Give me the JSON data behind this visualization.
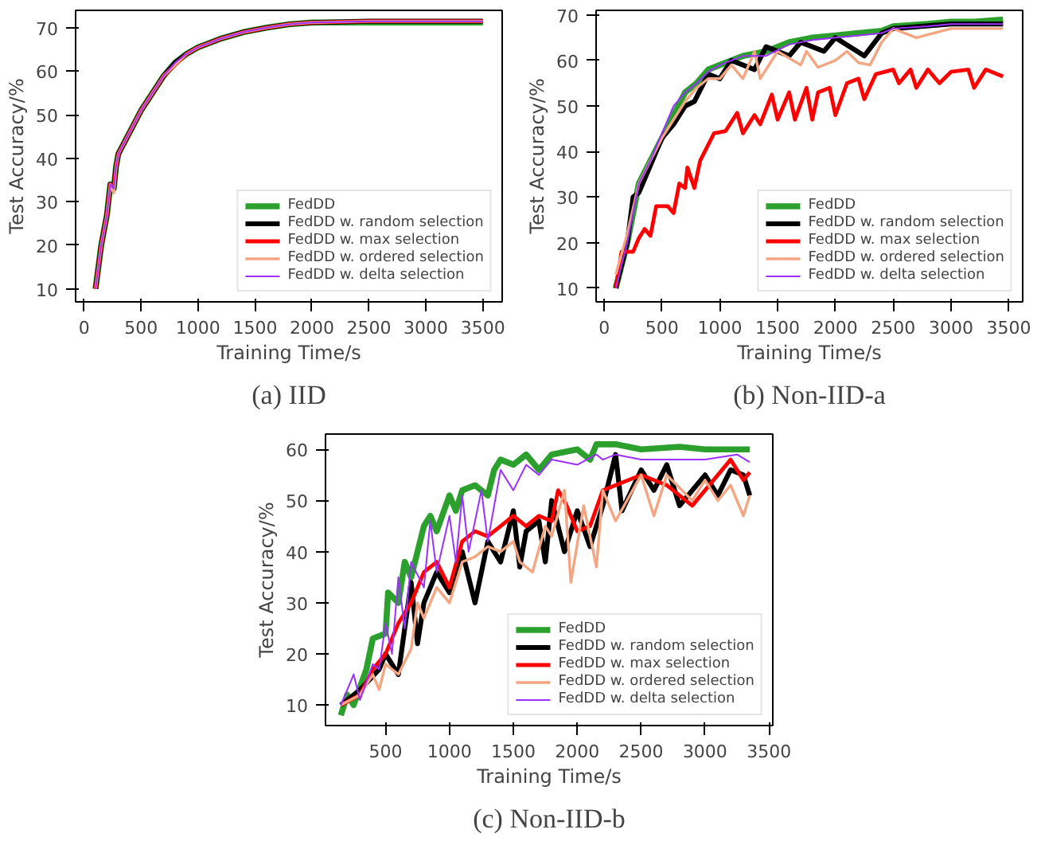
{
  "chart_data": [
    {
      "type": "line",
      "title": "(a) IID",
      "xlabel": "Training Time/s",
      "ylabel": "Test Accuracy/%",
      "xlim": [
        -75,
        3670
      ],
      "ylim": [
        7,
        74
      ],
      "xticks": [
        0,
        500,
        1000,
        1500,
        2000,
        2500,
        3000,
        3500
      ],
      "yticks": [
        10,
        20,
        30,
        40,
        50,
        60,
        70
      ],
      "legend": "bottom right",
      "series": [
        {
          "name": "FedDD",
          "color": "#2ca02c",
          "x": [
            100,
            150,
            200,
            230,
            260,
            280,
            300,
            400,
            500,
            600,
            700,
            800,
            900,
            1000,
            1200,
            1400,
            1600,
            1800,
            2000,
            2500,
            3000,
            3500
          ],
          "values": [
            10,
            20,
            27,
            34,
            33,
            38,
            41,
            46,
            51,
            55,
            59,
            62,
            64,
            65.5,
            67.5,
            69,
            70,
            70.8,
            71.2,
            71.2,
            71.2,
            71.2
          ]
        },
        {
          "name": "FedDD w. random selection",
          "color": "#000000",
          "x": [
            100,
            150,
            200,
            230,
            260,
            280,
            300,
            400,
            500,
            600,
            700,
            800,
            900,
            1000,
            1200,
            1400,
            1600,
            1800,
            2000,
            2500,
            3000,
            3500
          ],
          "values": [
            10,
            20,
            27,
            34,
            33,
            38,
            41,
            46,
            51,
            55,
            59,
            62,
            64,
            65.5,
            67.5,
            69,
            70,
            70.8,
            71.2,
            71.5,
            71.5,
            71.5
          ]
        },
        {
          "name": "FedDD w. max selection",
          "color": "#ff0000",
          "x": [
            100,
            150,
            200,
            230,
            260,
            280,
            300,
            400,
            500,
            600,
            700,
            800,
            900,
            1000,
            1200,
            1400,
            1600,
            1800,
            2000,
            2500,
            3000,
            3500
          ],
          "values": [
            10,
            20,
            27,
            34,
            33,
            38,
            41,
            46,
            51,
            55,
            59,
            61.5,
            64,
            65.5,
            67.5,
            69,
            70,
            70.8,
            71.2,
            71.5,
            71.5,
            71.5
          ]
        },
        {
          "name": "FedDD w. ordered selection",
          "color": "#f4a582",
          "x": [
            100,
            150,
            200,
            230,
            260,
            280,
            300,
            400,
            500,
            600,
            700,
            800,
            900,
            1000,
            1200,
            1400,
            1600,
            1800,
            2000,
            2500,
            3000,
            3500
          ],
          "values": [
            10,
            20,
            27,
            34,
            32,
            38,
            41,
            46,
            51,
            55,
            59,
            61.5,
            64,
            65.5,
            67.5,
            69,
            70,
            70.8,
            71.2,
            71.5,
            71.5,
            71.5
          ]
        },
        {
          "name": "FedDD w. delta selection",
          "color": "#9b30ff",
          "x": [
            100,
            150,
            200,
            230,
            260,
            280,
            300,
            400,
            500,
            600,
            700,
            800,
            900,
            1000,
            1200,
            1400,
            1600,
            1800,
            2000,
            2500,
            3000,
            3500
          ],
          "values": [
            10,
            20,
            27,
            34,
            33,
            38,
            41,
            46,
            51,
            55,
            59,
            62,
            64,
            65.5,
            67.5,
            69,
            70,
            70.8,
            71.2,
            71.5,
            71.5,
            71.5
          ]
        }
      ]
    },
    {
      "type": "line",
      "title": "(b) Non-IID-a",
      "xlabel": "Training Time/s",
      "ylabel": "Test Accuracy/%",
      "xlim": [
        -70,
        3620
      ],
      "ylim": [
        7,
        71
      ],
      "xticks": [
        0,
        500,
        1000,
        1500,
        2000,
        2500,
        3000,
        3500
      ],
      "yticks": [
        10,
        20,
        30,
        40,
        50,
        60,
        70
      ],
      "legend": "bottom right",
      "series": [
        {
          "name": "FedDD",
          "color": "#2ca02c",
          "x": [
            100,
            200,
            300,
            400,
            500,
            600,
            700,
            800,
            900,
            1000,
            1200,
            1400,
            1600,
            1800,
            2000,
            2200,
            2400,
            2500,
            2800,
            3000,
            3200,
            3450
          ],
          "values": [
            10,
            20,
            33,
            38,
            43,
            48,
            53,
            55,
            58,
            59,
            61,
            62,
            64,
            65,
            65.5,
            66,
            66.5,
            67.5,
            68,
            68.5,
            68.5,
            69
          ]
        },
        {
          "name": "FedDD w. random selection",
          "color": "#000000",
          "x": [
            100,
            200,
            250,
            300,
            400,
            500,
            600,
            700,
            780,
            900,
            1000,
            1100,
            1300,
            1400,
            1600,
            1700,
            1900,
            2000,
            2250,
            2400,
            2500,
            3000,
            3450
          ],
          "values": [
            10,
            20,
            30,
            31,
            37,
            43,
            46,
            50,
            51,
            57,
            56,
            60,
            58,
            63,
            61,
            64,
            62,
            65,
            61,
            66,
            67,
            68,
            68
          ]
        },
        {
          "name": "FedDD w. max selection",
          "color": "#ff0000",
          "x": [
            100,
            150,
            250,
            300,
            350,
            400,
            450,
            550,
            600,
            650,
            700,
            720,
            780,
            830,
            950,
            1050,
            1150,
            1200,
            1300,
            1350,
            1450,
            1500,
            1600,
            1650,
            1750,
            1800,
            1850,
            1950,
            2000,
            2100,
            2200,
            2250,
            2350,
            2500,
            2550,
            2650,
            2700,
            2800,
            2900,
            3000,
            3150,
            3200,
            3300,
            3450
          ],
          "values": [
            10,
            18,
            18,
            21,
            23,
            21.5,
            28,
            28,
            26.5,
            33,
            32,
            36.5,
            32,
            38,
            44,
            44.5,
            48.5,
            44,
            48,
            46,
            52.5,
            47,
            53,
            47,
            54,
            47,
            53,
            54,
            48,
            55,
            56,
            51.5,
            57,
            58,
            55,
            58,
            54,
            58,
            55,
            57.5,
            58,
            54,
            58,
            56.5
          ]
        },
        {
          "name": "FedDD w. ordered selection",
          "color": "#f4a582",
          "x": [
            100,
            200,
            300,
            400,
            500,
            600,
            700,
            800,
            900,
            1000,
            1100,
            1200,
            1300,
            1350,
            1500,
            1700,
            1750,
            1850,
            2000,
            2100,
            2200,
            2300,
            2400,
            2500,
            2700,
            3000,
            3450
          ],
          "values": [
            13,
            22,
            33,
            38,
            43,
            47,
            51,
            54,
            56,
            56,
            59,
            56,
            62,
            56,
            62,
            59,
            62,
            58.5,
            60,
            62,
            59.5,
            59,
            64,
            67,
            65,
            67,
            67
          ]
        },
        {
          "name": "FedDD w. delta selection",
          "color": "#9b30ff",
          "x": [
            100,
            200,
            300,
            400,
            500,
            600,
            700,
            800,
            900,
            1000,
            1200,
            1400,
            1600,
            1800,
            2000,
            2200,
            2400,
            2500,
            2800,
            3000,
            3200,
            3450
          ],
          "values": [
            10,
            20,
            33,
            38,
            44,
            50,
            53,
            55,
            57.5,
            59,
            61,
            61,
            63.5,
            64.5,
            65,
            65.5,
            66,
            67,
            67.5,
            68,
            68,
            68
          ]
        }
      ]
    },
    {
      "type": "line",
      "title": "(c) Non-IID-b",
      "xlabel": "Training Time/s",
      "ylabel": "Test Accuracy/%",
      "xlim": [
        30,
        3530
      ],
      "ylim": [
        6,
        63
      ],
      "xticks": [
        500,
        1000,
        1500,
        2000,
        2500,
        3000,
        3500
      ],
      "yticks": [
        10,
        20,
        30,
        40,
        50,
        60
      ],
      "legend": "bottom right",
      "series": [
        {
          "name": "FedDD",
          "color": "#2ca02c",
          "x": [
            150,
            200,
            250,
            350,
            400,
            500,
            520,
            600,
            650,
            700,
            750,
            800,
            850,
            900,
            1000,
            1050,
            1100,
            1200,
            1300,
            1350,
            1400,
            1500,
            1600,
            1700,
            1800,
            2000,
            2100,
            2150,
            2300,
            2500,
            2800,
            3000,
            3200,
            3350
          ],
          "values": [
            8,
            12,
            10,
            17,
            23,
            24,
            32,
            30,
            38,
            35,
            40,
            45,
            47,
            44,
            51,
            48,
            52,
            53,
            51,
            56,
            58,
            57,
            59,
            56,
            59,
            60,
            58,
            61,
            61,
            60,
            60.5,
            60,
            60,
            60
          ]
        },
        {
          "name": "FedDD w. random selection",
          "color": "#000000",
          "x": [
            150,
            300,
            450,
            500,
            600,
            700,
            750,
            800,
            900,
            1000,
            1100,
            1200,
            1300,
            1400,
            1500,
            1550,
            1600,
            1700,
            1750,
            1800,
            1900,
            2000,
            2100,
            2200,
            2300,
            2350,
            2500,
            2600,
            2700,
            2800,
            3000,
            3100,
            3200,
            3300,
            3350
          ],
          "values": [
            10,
            13,
            17,
            20,
            16,
            34,
            22,
            30,
            36,
            32,
            40,
            30,
            42,
            38,
            48,
            37,
            44,
            46,
            38,
            50,
            40,
            48,
            41,
            49,
            59,
            48,
            56,
            52,
            57,
            49,
            55,
            51,
            56,
            55,
            51
          ]
        },
        {
          "name": "FedDD w. max selection",
          "color": "#ff0000",
          "x": [
            150,
            300,
            400,
            500,
            600,
            700,
            800,
            900,
            1000,
            1100,
            1200,
            1300,
            1400,
            1500,
            1600,
            1700,
            1800,
            1850,
            1900,
            2000,
            2100,
            2200,
            2300,
            2500,
            2700,
            2900,
            3000,
            3100,
            3200,
            3300,
            3350
          ],
          "values": [
            10,
            12,
            17,
            20,
            26,
            30,
            36,
            38,
            33,
            42,
            44,
            43,
            45,
            47,
            45,
            47,
            46,
            52,
            50,
            44,
            45,
            52,
            53,
            55,
            53,
            49,
            52,
            55,
            58,
            54,
            55.5
          ]
        },
        {
          "name": "FedDD w. ordered selection",
          "color": "#f4a582",
          "x": [
            150,
            300,
            400,
            450,
            500,
            600,
            700,
            750,
            800,
            900,
            1000,
            1100,
            1200,
            1300,
            1400,
            1500,
            1550,
            1650,
            1750,
            1800,
            1900,
            1950,
            2050,
            2150,
            2200,
            2300,
            2500,
            2600,
            2700,
            2900,
            3000,
            3100,
            3200,
            3300,
            3350
          ],
          "values": [
            10,
            12,
            16,
            13,
            18,
            16,
            21,
            30,
            27,
            33,
            30,
            38,
            39,
            41,
            40,
            42,
            38,
            36,
            45,
            43,
            52,
            34,
            49,
            37,
            52,
            46,
            55,
            47,
            55,
            50,
            54,
            50,
            53,
            47,
            51
          ]
        },
        {
          "name": "FedDD w. delta selection",
          "color": "#9b30ff",
          "x": [
            150,
            250,
            300,
            400,
            450,
            500,
            550,
            600,
            650,
            700,
            800,
            850,
            900,
            1000,
            1050,
            1100,
            1150,
            1250,
            1300,
            1400,
            1500,
            1600,
            1700,
            1800,
            2000,
            2150,
            2200,
            2300,
            2500,
            3000,
            3250,
            3350
          ],
          "values": [
            10,
            16,
            11,
            18,
            17,
            26,
            20,
            35,
            25,
            38,
            33,
            46,
            36,
            47,
            38,
            51,
            40,
            52,
            42,
            56,
            52,
            57,
            55,
            58,
            57,
            59,
            58,
            59,
            58,
            58,
            59,
            57.5
          ]
        }
      ]
    }
  ]
}
